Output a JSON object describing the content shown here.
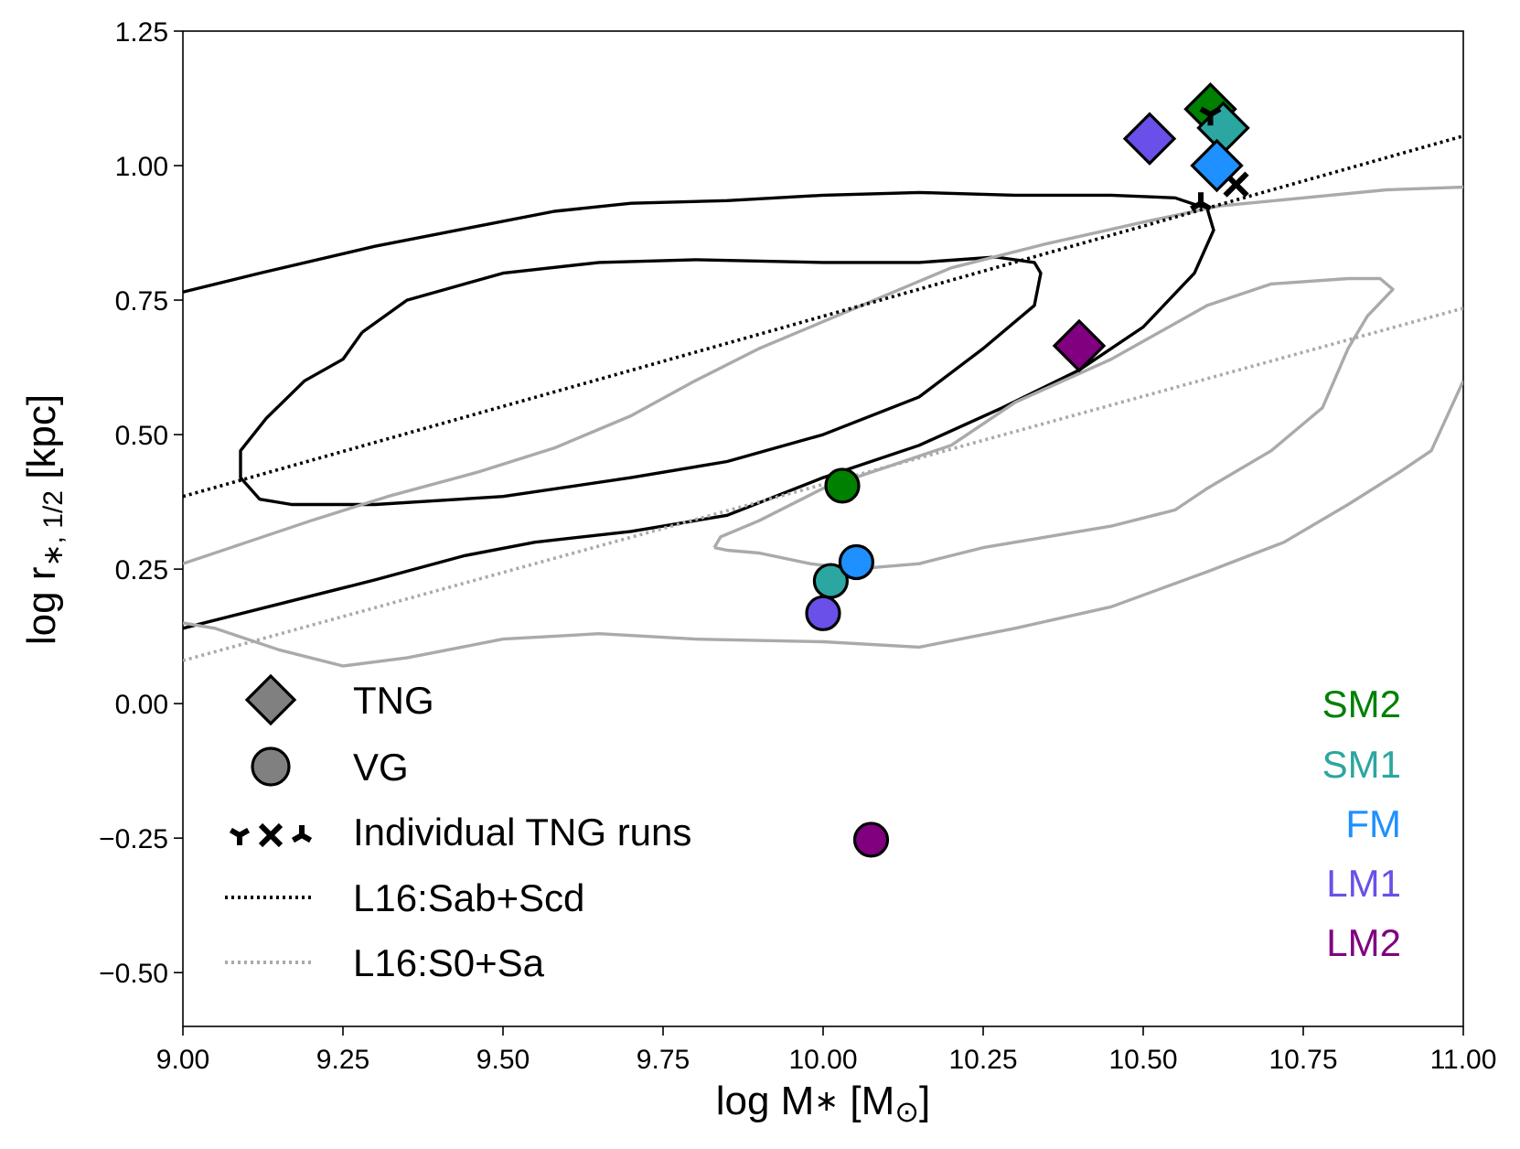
{
  "chart_data": {
    "type": "scatter",
    "title": "",
    "xlabel_parts": [
      "log M",
      "∗",
      " [M",
      "⊙",
      "]"
    ],
    "ylabel_parts": [
      "log r",
      "∗, 1/2",
      " [kpc]"
    ],
    "xlim": [
      9.0,
      11.0
    ],
    "ylim": [
      -0.6,
      1.25
    ],
    "x_ticks": [
      9.0,
      9.25,
      9.5,
      9.75,
      10.0,
      10.25,
      10.5,
      10.75,
      11.0
    ],
    "x_tick_labels": [
      "9.00",
      "9.25",
      "9.50",
      "9.75",
      "10.00",
      "10.25",
      "10.50",
      "10.75",
      "11.00"
    ],
    "y_ticks": [
      -0.5,
      -0.25,
      0.0,
      0.25,
      0.5,
      0.75,
      1.0,
      1.25
    ],
    "y_tick_labels": [
      "−0.50",
      "−0.25",
      "0.00",
      "0.25",
      "0.50",
      "0.75",
      "1.00",
      "1.25"
    ],
    "grid": false,
    "runs": [
      {
        "name": "SM2",
        "color": "#008000"
      },
      {
        "name": "SM1",
        "color": "#2ca6a0"
      },
      {
        "name": "FM",
        "color": "#1e90ff"
      },
      {
        "name": "LM1",
        "color": "#6a50e8"
      },
      {
        "name": "LM2",
        "color": "#800080"
      }
    ],
    "series": [
      {
        "name": "TNG",
        "marker": "diamond",
        "points": [
          {
            "run": "SM2",
            "x": 10.605,
            "y": 1.105
          },
          {
            "run": "SM1",
            "x": 10.625,
            "y": 1.07
          },
          {
            "run": "FM",
            "x": 10.615,
            "y": 1.0
          },
          {
            "run": "LM1",
            "x": 10.51,
            "y": 1.05
          },
          {
            "run": "LM2",
            "x": 10.4,
            "y": 0.665
          }
        ]
      },
      {
        "name": "VG",
        "marker": "circle",
        "points": [
          {
            "run": "SM2",
            "x": 10.03,
            "y": 0.405
          },
          {
            "run": "SM1",
            "x": 10.012,
            "y": 0.228
          },
          {
            "run": "FM",
            "x": 10.052,
            "y": 0.263
          },
          {
            "run": "LM1",
            "x": 10.0,
            "y": 0.168
          },
          {
            "run": "LM2",
            "x": 10.075,
            "y": -0.253
          }
        ]
      },
      {
        "name": "Individual TNG runs",
        "marker": "tri/x",
        "points": [
          {
            "marker": "tri_down",
            "x": 10.605,
            "y": 1.095
          },
          {
            "marker": "x",
            "x": 10.645,
            "y": 0.965
          },
          {
            "marker": "tri_up",
            "x": 10.59,
            "y": 0.93
          }
        ]
      },
      {
        "name": "L16:Sab+Scd",
        "style": "dotted",
        "color": "#000000",
        "x": [
          9.0,
          11.0
        ],
        "y": [
          0.385,
          1.055
        ]
      },
      {
        "name": "L16:S0+Sa",
        "style": "dotted",
        "color": "#aaaaaa",
        "x": [
          9.0,
          11.0
        ],
        "y": [
          0.08,
          0.735
        ]
      }
    ],
    "contours": [
      {
        "name": "Sab+Scd outer contour",
        "color": "#000000",
        "x": [
          9.0,
          9.12,
          9.3,
          9.45,
          9.58,
          9.7,
          9.85,
          10.0,
          10.15,
          10.3,
          10.45,
          10.55,
          10.6,
          10.61,
          10.58,
          10.5,
          10.4,
          10.28,
          10.15,
          10.0,
          9.85,
          9.7,
          9.55,
          9.44,
          9.3,
          9.15,
          9.0
        ],
        "y": [
          0.765,
          0.8,
          0.85,
          0.885,
          0.915,
          0.93,
          0.935,
          0.945,
          0.95,
          0.945,
          0.945,
          0.94,
          0.92,
          0.88,
          0.8,
          0.7,
          0.62,
          0.55,
          0.48,
          0.42,
          0.35,
          0.32,
          0.3,
          0.275,
          0.23,
          0.185,
          0.14
        ]
      },
      {
        "name": "Sab+Scd inner contour",
        "color": "#000000",
        "x": [
          9.28,
          9.35,
          9.5,
          9.65,
          9.8,
          10.0,
          10.15,
          10.27,
          10.33,
          10.34,
          10.33,
          10.3,
          10.25,
          10.15,
          10.0,
          9.85,
          9.7,
          9.5,
          9.3,
          9.17,
          9.12,
          9.09,
          9.09,
          9.13,
          9.19,
          9.25,
          9.28
        ],
        "y": [
          0.69,
          0.75,
          0.8,
          0.82,
          0.825,
          0.82,
          0.82,
          0.83,
          0.82,
          0.8,
          0.74,
          0.71,
          0.66,
          0.57,
          0.5,
          0.45,
          0.42,
          0.385,
          0.37,
          0.37,
          0.38,
          0.42,
          0.47,
          0.53,
          0.6,
          0.64,
          0.69
        ]
      },
      {
        "name": "S0+Sa outer contour",
        "color": "#aaaaaa",
        "x": [
          9.0,
          9.1,
          9.2,
          9.32,
          9.46,
          9.58,
          9.7,
          9.8,
          9.9,
          10.0,
          10.1,
          10.2,
          10.35,
          10.5,
          10.62,
          10.75,
          10.88,
          11.0
        ],
        "y": [
          0.26,
          0.3,
          0.34,
          0.385,
          0.43,
          0.475,
          0.535,
          0.6,
          0.66,
          0.71,
          0.76,
          0.81,
          0.855,
          0.895,
          0.925,
          0.94,
          0.955,
          0.96
        ]
      },
      {
        "name": "S0+Sa outer contour lower",
        "color": "#aaaaaa",
        "x": [
          9.0,
          9.05,
          9.15,
          9.25,
          9.35,
          9.5,
          9.65,
          9.8,
          10.0,
          10.15,
          10.3,
          10.45,
          10.6,
          10.72,
          10.82,
          10.9,
          10.95,
          11.0
        ],
        "y": [
          0.15,
          0.14,
          0.1,
          0.07,
          0.085,
          0.12,
          0.13,
          0.12,
          0.115,
          0.105,
          0.14,
          0.18,
          0.245,
          0.3,
          0.37,
          0.43,
          0.47,
          0.6
        ]
      },
      {
        "name": "S0+Sa inner contour",
        "color": "#aaaaaa",
        "x": [
          9.83,
          9.84,
          9.9,
          10.0,
          10.1,
          10.2,
          10.3,
          10.45,
          10.6,
          10.7,
          10.82,
          10.87,
          10.89,
          10.85,
          10.82,
          10.78,
          10.7,
          10.6,
          10.55,
          10.45,
          10.35,
          10.25,
          10.15,
          10.05,
          9.98,
          9.9,
          9.85,
          9.83
        ],
        "y": [
          0.29,
          0.31,
          0.34,
          0.4,
          0.44,
          0.48,
          0.56,
          0.64,
          0.74,
          0.78,
          0.79,
          0.79,
          0.77,
          0.72,
          0.66,
          0.55,
          0.47,
          0.4,
          0.36,
          0.33,
          0.31,
          0.29,
          0.26,
          0.25,
          0.26,
          0.28,
          0.285,
          0.29
        ]
      }
    ],
    "legend": {
      "placement": "lower-left",
      "entries": [
        "TNG",
        "VG",
        "Individual TNG runs",
        "L16:Sab+Scd",
        "L16:S0+Sa"
      ]
    },
    "run_legend": {
      "placement": "lower-right",
      "entries": [
        "SM2",
        "SM1",
        "FM",
        "LM1",
        "LM2"
      ]
    }
  }
}
